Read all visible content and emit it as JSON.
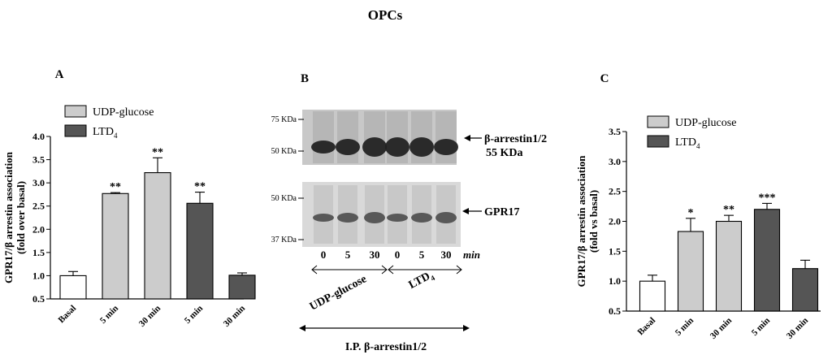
{
  "figure_title": "OPCs",
  "panels": {
    "A": "A",
    "B": "B",
    "C": "C"
  },
  "colors": {
    "basal": "#ffffff",
    "udp_glucose": "#cccccc",
    "ltd4": "#555555",
    "blot_bg": "#c8c8c8",
    "band": "#1e1e1e"
  },
  "chart_data": [
    {
      "type": "bar",
      "panel": "A",
      "ylabel_line1": "GPR17/β arrestin association",
      "ylabel_line2": "(fold over basal)",
      "ylim": [
        0.5,
        4.0
      ],
      "yticks": [
        "0.5",
        "1.0",
        "1.5",
        "2.0",
        "2.5",
        "3.0",
        "3.5",
        "4.0"
      ],
      "categories": [
        "Basal",
        "5 min",
        "30 min",
        "5 min",
        "30 min"
      ],
      "values": [
        1.0,
        2.77,
        3.22,
        2.56,
        1.01
      ],
      "errors": [
        0.09,
        0.02,
        0.32,
        0.24,
        0.05
      ],
      "groups": [
        "basal",
        "udp",
        "udp",
        "ltd",
        "ltd"
      ],
      "significance": [
        "",
        "**",
        "**",
        "**",
        ""
      ],
      "legend": [
        {
          "label": "UDP-glucose",
          "key": "udp"
        },
        {
          "label": "LTD",
          "sub": "4",
          "key": "ltd"
        }
      ]
    },
    {
      "type": "bar",
      "panel": "C",
      "ylabel_line1": "GPR17/β arrestin association",
      "ylabel_line2": "(fold vs basal)",
      "ylim": [
        0.5,
        3.5
      ],
      "yticks": [
        "0.5",
        "1.0",
        "1.5",
        "2.0",
        "2.5",
        "3.0",
        "3.5"
      ],
      "categories": [
        "Basal",
        "5 min",
        "30 min",
        "5 min",
        "30 min"
      ],
      "values": [
        1.0,
        1.83,
        2.0,
        2.2,
        1.21
      ],
      "errors": [
        0.1,
        0.22,
        0.1,
        0.1,
        0.14
      ],
      "groups": [
        "basal",
        "udp",
        "udp",
        "ltd",
        "ltd"
      ],
      "significance": [
        "",
        "*",
        "**",
        "***",
        ""
      ],
      "legend": [
        {
          "label": "UDP-glucose",
          "key": "udp"
        },
        {
          "label": "LTD",
          "sub": "4",
          "key": "ltd"
        }
      ]
    }
  ],
  "blot": {
    "markers_top": [
      "75 KDa",
      "50 KDa"
    ],
    "markers_bottom": [
      "50 KDa",
      "37 KDa"
    ],
    "label_arrestin": "β-arrestin1/2",
    "label_arrestin_kda": "55 KDa",
    "label_gpr17": "GPR17",
    "lanes": [
      "0",
      "5",
      "30",
      "0",
      "5",
      "30"
    ],
    "lane_unit": "min",
    "group_udp": "UDP-glucose",
    "group_ltd": "LTD",
    "group_ltd_sub": "4",
    "ip_label": "I.P. β-arrestin1/2"
  }
}
